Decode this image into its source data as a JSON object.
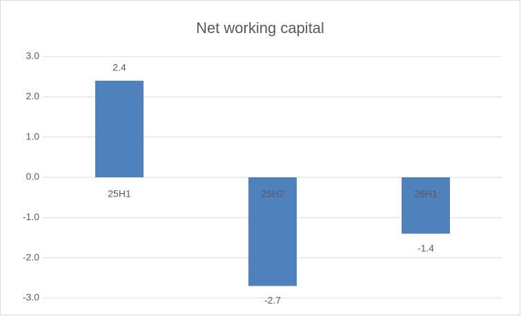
{
  "chart_data": {
    "type": "bar",
    "title": "Net working capital",
    "categories": [
      "25H1",
      "25H2",
      "26H1"
    ],
    "values": [
      2.4,
      -2.7,
      -1.4
    ],
    "color": "#4f81bd",
    "ylim": [
      -3,
      3
    ],
    "yticks": [
      {
        "value": -3,
        "label": "-3.0"
      },
      {
        "value": -2,
        "label": "-2.0"
      },
      {
        "value": -1,
        "label": "-1.0"
      },
      {
        "value": 0,
        "label": "0.0"
      },
      {
        "value": 1,
        "label": "1.0"
      },
      {
        "value": 2,
        "label": "2.0"
      },
      {
        "value": 3,
        "label": "3.0"
      }
    ],
    "grid": true
  }
}
